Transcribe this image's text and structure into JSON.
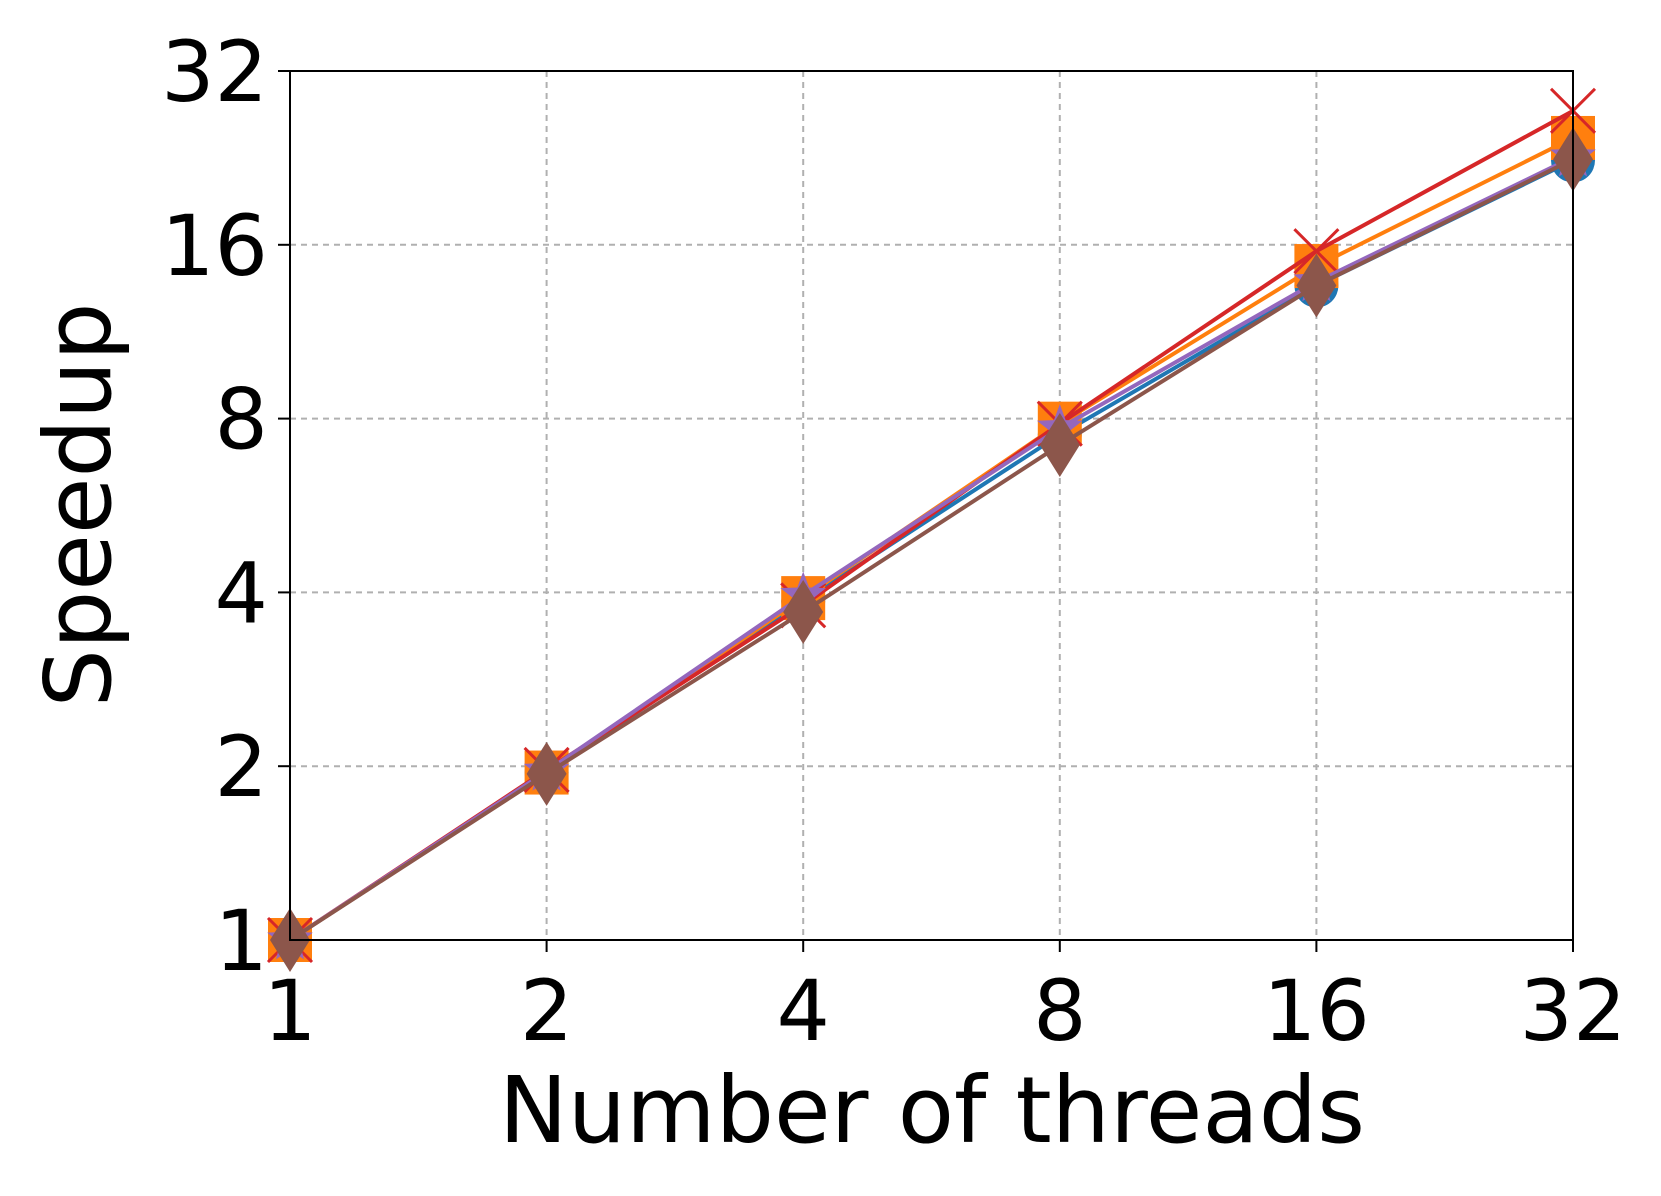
{
  "chart_data": {
    "type": "line",
    "xlabel": "Number of threads",
    "ylabel": "Speedup",
    "x": [
      1,
      2,
      4,
      8,
      16,
      32
    ],
    "xscale": "log",
    "yscale": "log",
    "log_base": 2,
    "xlim": [
      1,
      32
    ],
    "ylim": [
      1,
      32
    ],
    "xticks": [
      1,
      2,
      4,
      8,
      16,
      32
    ],
    "yticks": [
      1,
      2,
      4,
      8,
      16,
      32
    ],
    "grid": true,
    "series": [
      {
        "color": "#1f77b4",
        "marker": "circle",
        "values": [
          1,
          1.95,
          3.86,
          7.5,
          13.6,
          22.4
        ]
      },
      {
        "color": "#ff7f0e",
        "marker": "square",
        "values": [
          1,
          1.95,
          3.91,
          7.84,
          14.7,
          24.5
        ]
      },
      {
        "color": "#d62728",
        "marker": "x",
        "values": [
          1,
          1.97,
          3.8,
          7.84,
          15.6,
          27.3
        ]
      },
      {
        "color": "#9467bd",
        "marker": "star",
        "values": [
          1,
          1.96,
          3.95,
          7.7,
          13.8,
          22.7
        ]
      },
      {
        "color": "#8c564b",
        "marker": "diamond",
        "values": [
          1,
          1.94,
          3.7,
          7.2,
          13.6,
          22.5
        ]
      }
    ]
  }
}
